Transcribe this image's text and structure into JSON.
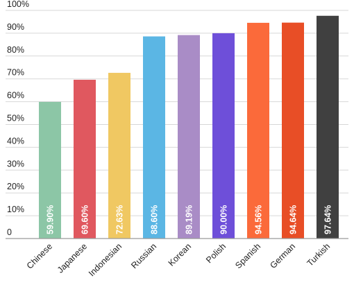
{
  "chart_data": {
    "type": "bar",
    "categories": [
      "Chinese",
      "Japanese",
      "Indonesian",
      "Russian",
      "Korean",
      "Polish",
      "Spanish",
      "German",
      "Turkish"
    ],
    "values": [
      59.9,
      69.6,
      72.63,
      88.6,
      89.19,
      90.0,
      94.56,
      94.64,
      97.64
    ],
    "value_labels": [
      "59.90%",
      "69.60%",
      "72.63%",
      "88.60%",
      "89.19%",
      "90.00%",
      "94.56%",
      "94.64%",
      "97.64%"
    ],
    "colors": [
      "#8cc6a6",
      "#e0585f",
      "#f0c862",
      "#5bb6e4",
      "#a98cc6",
      "#6e4fd9",
      "#fb6a3a",
      "#e84e26",
      "#404040"
    ],
    "ylim": [
      0,
      100
    ],
    "yticks": [
      0,
      10,
      20,
      30,
      40,
      50,
      60,
      70,
      80,
      90,
      100
    ],
    "ytick_labels": [
      "0",
      "10%",
      "20%",
      "30%",
      "40%",
      "50%",
      "60%",
      "70%",
      "80%",
      "90%",
      "100%"
    ],
    "title": "",
    "xlabel": "",
    "ylabel": "",
    "grid": true
  }
}
